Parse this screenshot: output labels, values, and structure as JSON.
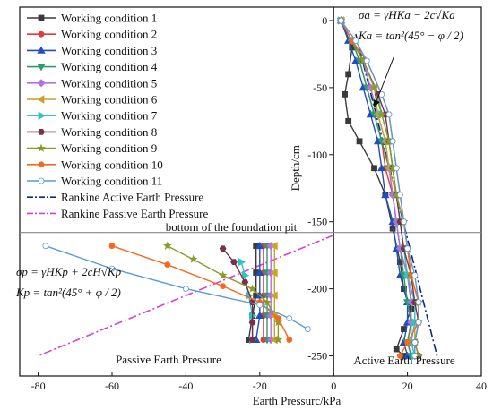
{
  "chart_data": {
    "type": "line",
    "xlabel": "Earth Pressurc/kPa",
    "ylabel": "Depth/cm",
    "xlim": [
      -85,
      40
    ],
    "ylim": [
      -265,
      10
    ],
    "x_ticks": [
      -80,
      -60,
      -40,
      -20,
      0,
      20,
      40
    ],
    "y_ticks": [
      0,
      -50,
      -100,
      -150,
      -200,
      -250
    ],
    "grid": false,
    "legend_position": "top-left",
    "annotations": {
      "foundation_label": "bottom of the foundation pit",
      "passive_label": "Passive Earth Pressure",
      "active_label": "Active Earth Pressure",
      "passive_formula_1": "σp = γHKp + 2cH√Kp",
      "passive_formula_2": "Kp = tan²(45° + φ / 2)",
      "active_formula_1": "σa = γHKa − 2c√Ka",
      "active_formula_2": "Ka = tan²(45° − φ / 2)"
    },
    "foundation_depth": -160,
    "series": [
      {
        "name": "Working condition 1",
        "color": "#3a3a3a",
        "marker": "square",
        "active": [
          [
            2,
            0
          ],
          [
            5,
            -20
          ],
          [
            4,
            -40
          ],
          [
            3,
            -55
          ],
          [
            4,
            -75
          ],
          [
            7,
            -90
          ],
          [
            11,
            -110
          ],
          [
            14,
            -130
          ],
          [
            16,
            -155
          ],
          [
            18,
            -180
          ],
          [
            19,
            -200
          ],
          [
            21,
            -215
          ],
          [
            19,
            -230
          ],
          [
            17,
            -245
          ],
          [
            19,
            -250
          ]
        ],
        "passive": [
          [
            -21,
            -168
          ],
          [
            -21,
            -188
          ],
          [
            -21,
            -205
          ],
          [
            -22,
            -220
          ],
          [
            -23,
            -238
          ]
        ]
      },
      {
        "name": "Working condition 2",
        "color": "#e5383b",
        "marker": "circle",
        "active": [
          [
            2,
            0
          ],
          [
            5,
            -15
          ],
          [
            7,
            -30
          ],
          [
            9,
            -50
          ],
          [
            11,
            -70
          ],
          [
            13,
            -90
          ],
          [
            14,
            -110
          ],
          [
            16,
            -130
          ],
          [
            17,
            -150
          ],
          [
            18,
            -170
          ],
          [
            20,
            -190
          ],
          [
            21,
            -210
          ],
          [
            21,
            -225
          ],
          [
            20,
            -240
          ],
          [
            21,
            -250
          ]
        ],
        "passive": [
          [
            -19,
            -168
          ],
          [
            -19,
            -188
          ],
          [
            -19,
            -205
          ],
          [
            -19,
            -220
          ],
          [
            -19,
            -238
          ]
        ]
      },
      {
        "name": "Working condition 3",
        "color": "#1f4fbf",
        "marker": "triangle-up",
        "active": [
          [
            2,
            0
          ],
          [
            4,
            -15
          ],
          [
            6,
            -30
          ],
          [
            8,
            -50
          ],
          [
            10,
            -70
          ],
          [
            12,
            -90
          ],
          [
            13,
            -110
          ],
          [
            14,
            -130
          ],
          [
            16,
            -150
          ],
          [
            17,
            -170
          ],
          [
            18,
            -190
          ],
          [
            20,
            -210
          ],
          [
            20,
            -225
          ],
          [
            19,
            -240
          ],
          [
            20,
            -250
          ]
        ],
        "passive": [
          [
            -20,
            -168
          ],
          [
            -20,
            -188
          ],
          [
            -20,
            -205
          ],
          [
            -20,
            -220
          ],
          [
            -21,
            -238
          ]
        ]
      },
      {
        "name": "Working condition 4",
        "color": "#2a9d6f",
        "marker": "triangle-down",
        "active": [
          [
            2,
            0
          ],
          [
            5,
            -15
          ],
          [
            7,
            -30
          ],
          [
            9,
            -50
          ],
          [
            11,
            -70
          ],
          [
            13,
            -90
          ],
          [
            15,
            -110
          ],
          [
            16,
            -130
          ],
          [
            17,
            -150
          ],
          [
            18,
            -170
          ],
          [
            19,
            -190
          ],
          [
            20,
            -210
          ],
          [
            21,
            -225
          ],
          [
            20,
            -240
          ],
          [
            21,
            -250
          ]
        ],
        "passive": [
          [
            -18,
            -168
          ],
          [
            -18,
            -188
          ],
          [
            -18,
            -205
          ],
          [
            -18,
            -220
          ],
          [
            -18,
            -238
          ]
        ]
      },
      {
        "name": "Working condition 5",
        "color": "#b46fe0",
        "marker": "diamond",
        "active": [
          [
            2,
            0
          ],
          [
            5,
            -15
          ],
          [
            8,
            -30
          ],
          [
            10,
            -50
          ],
          [
            12,
            -70
          ],
          [
            14,
            -90
          ],
          [
            15,
            -110
          ],
          [
            16,
            -130
          ],
          [
            17,
            -150
          ],
          [
            18,
            -170
          ],
          [
            20,
            -190
          ],
          [
            21,
            -210
          ],
          [
            21,
            -225
          ],
          [
            21,
            -240
          ],
          [
            22,
            -250
          ]
        ],
        "passive": [
          [
            -17,
            -168
          ],
          [
            -17,
            -188
          ],
          [
            -17,
            -205
          ],
          [
            -17,
            -220
          ],
          [
            -17,
            -238
          ]
        ]
      },
      {
        "name": "Working condition 6",
        "color": "#c9a227",
        "marker": "triangle-left",
        "active": [
          [
            2,
            0
          ],
          [
            5,
            -15
          ],
          [
            8,
            -30
          ],
          [
            11,
            -50
          ],
          [
            12,
            -70
          ],
          [
            14,
            -90
          ],
          [
            15,
            -110
          ],
          [
            17,
            -130
          ],
          [
            18,
            -150
          ],
          [
            19,
            -170
          ],
          [
            20,
            -190
          ],
          [
            22,
            -210
          ],
          [
            22,
            -225
          ],
          [
            22,
            -240
          ],
          [
            22,
            -250
          ]
        ],
        "passive": [
          [
            -16,
            -168
          ],
          [
            -16,
            -188
          ],
          [
            -16,
            -205
          ],
          [
            -16,
            -220
          ],
          [
            -16,
            -238
          ]
        ]
      },
      {
        "name": "Working condition 7",
        "color": "#2ec4c6",
        "marker": "triangle-right",
        "active": [
          [
            2,
            0
          ],
          [
            5,
            -15
          ],
          [
            8,
            -30
          ],
          [
            12,
            -55
          ],
          [
            13,
            -70
          ],
          [
            15,
            -90
          ],
          [
            16,
            -110
          ],
          [
            17,
            -130
          ],
          [
            18,
            -150
          ],
          [
            19,
            -170
          ],
          [
            20,
            -190
          ],
          [
            22,
            -210
          ],
          [
            22,
            -225
          ],
          [
            21,
            -240
          ],
          [
            22,
            -250
          ]
        ],
        "passive": [
          [
            -25,
            -180
          ],
          [
            -24,
            -190
          ],
          [
            -23,
            -205
          ],
          [
            -22,
            -220
          ],
          [
            -22,
            -238
          ]
        ]
      },
      {
        "name": "Working condition 8",
        "color": "#7a2f4a",
        "marker": "hexagon",
        "active": [
          [
            2,
            0
          ],
          [
            5,
            -15
          ],
          [
            8,
            -30
          ],
          [
            12,
            -55
          ],
          [
            14,
            -70
          ],
          [
            15,
            -90
          ],
          [
            16,
            -110
          ],
          [
            17,
            -130
          ],
          [
            18,
            -150
          ],
          [
            19,
            -170
          ],
          [
            21,
            -190
          ],
          [
            22,
            -210
          ],
          [
            23,
            -225
          ],
          [
            22,
            -240
          ],
          [
            23,
            -250
          ]
        ],
        "passive": [
          [
            -30,
            -170
          ],
          [
            -27,
            -180
          ],
          [
            -24,
            -195
          ],
          [
            -22,
            -210
          ],
          [
            -22,
            -225
          ],
          [
            -22,
            -238
          ]
        ]
      },
      {
        "name": "Working condition 9",
        "color": "#8c9a2a",
        "marker": "star",
        "active": [
          [
            2,
            0
          ],
          [
            5,
            -15
          ],
          [
            8,
            -30
          ],
          [
            11,
            -50
          ],
          [
            13,
            -70
          ],
          [
            15,
            -90
          ],
          [
            16,
            -110
          ],
          [
            17,
            -130
          ],
          [
            19,
            -150
          ],
          [
            20,
            -170
          ],
          [
            21,
            -190
          ],
          [
            23,
            -210
          ],
          [
            23,
            -225
          ],
          [
            22,
            -240
          ],
          [
            23,
            -250
          ]
        ],
        "passive": [
          [
            -45,
            -168
          ],
          [
            -38,
            -178
          ],
          [
            -30,
            -190
          ],
          [
            -22,
            -200
          ],
          [
            -18,
            -210
          ],
          [
            -15,
            -225
          ],
          [
            -15,
            -238
          ]
        ]
      },
      {
        "name": "Working condition 10",
        "color": "#f26a1b",
        "marker": "circle",
        "active": [
          [
            2,
            0
          ],
          [
            5,
            -15
          ],
          [
            9,
            -30
          ],
          [
            13,
            -55
          ],
          [
            15,
            -70
          ],
          [
            16,
            -90
          ],
          [
            17,
            -110
          ],
          [
            18,
            -130
          ],
          [
            19,
            -150
          ],
          [
            20,
            -170
          ],
          [
            21,
            -190
          ],
          [
            23,
            -210
          ],
          [
            23,
            -225
          ],
          [
            20,
            -240
          ],
          [
            18,
            -250
          ]
        ],
        "passive": [
          [
            -60,
            -168
          ],
          [
            -45,
            -182
          ],
          [
            -30,
            -198
          ],
          [
            -20,
            -210
          ],
          [
            -15,
            -222
          ],
          [
            -12,
            -238
          ]
        ]
      },
      {
        "name": "Working condition 11",
        "color": "#5b9bd5",
        "marker": "circle-open",
        "active": [
          [
            2,
            0
          ],
          [
            6,
            -15
          ],
          [
            9,
            -30
          ],
          [
            13,
            -55
          ],
          [
            15,
            -70
          ],
          [
            16,
            -90
          ],
          [
            17,
            -110
          ],
          [
            18,
            -130
          ],
          [
            19,
            -150
          ],
          [
            20,
            -170
          ],
          [
            22,
            -190
          ],
          [
            23,
            -210
          ],
          [
            23,
            -225
          ],
          [
            22,
            -240
          ],
          [
            22,
            -250
          ]
        ],
        "passive": [
          [
            -78,
            -168
          ],
          [
            -60,
            -185
          ],
          [
            -40,
            -200
          ],
          [
            -20,
            -212
          ],
          [
            -12,
            -222
          ],
          [
            -7,
            -230
          ]
        ]
      },
      {
        "name": "Rankine Active Earth Pressure",
        "color": "#0a2a8a",
        "line": "dashdot",
        "points": [
          [
            6,
            -10
          ],
          [
            28,
            -250
          ]
        ]
      },
      {
        "name": "Rankine Passive Earth Pressure",
        "color": "#d63fd6",
        "line": "dashdot",
        "points": [
          [
            0,
            -160
          ],
          [
            -80,
            -250
          ]
        ]
      }
    ]
  }
}
